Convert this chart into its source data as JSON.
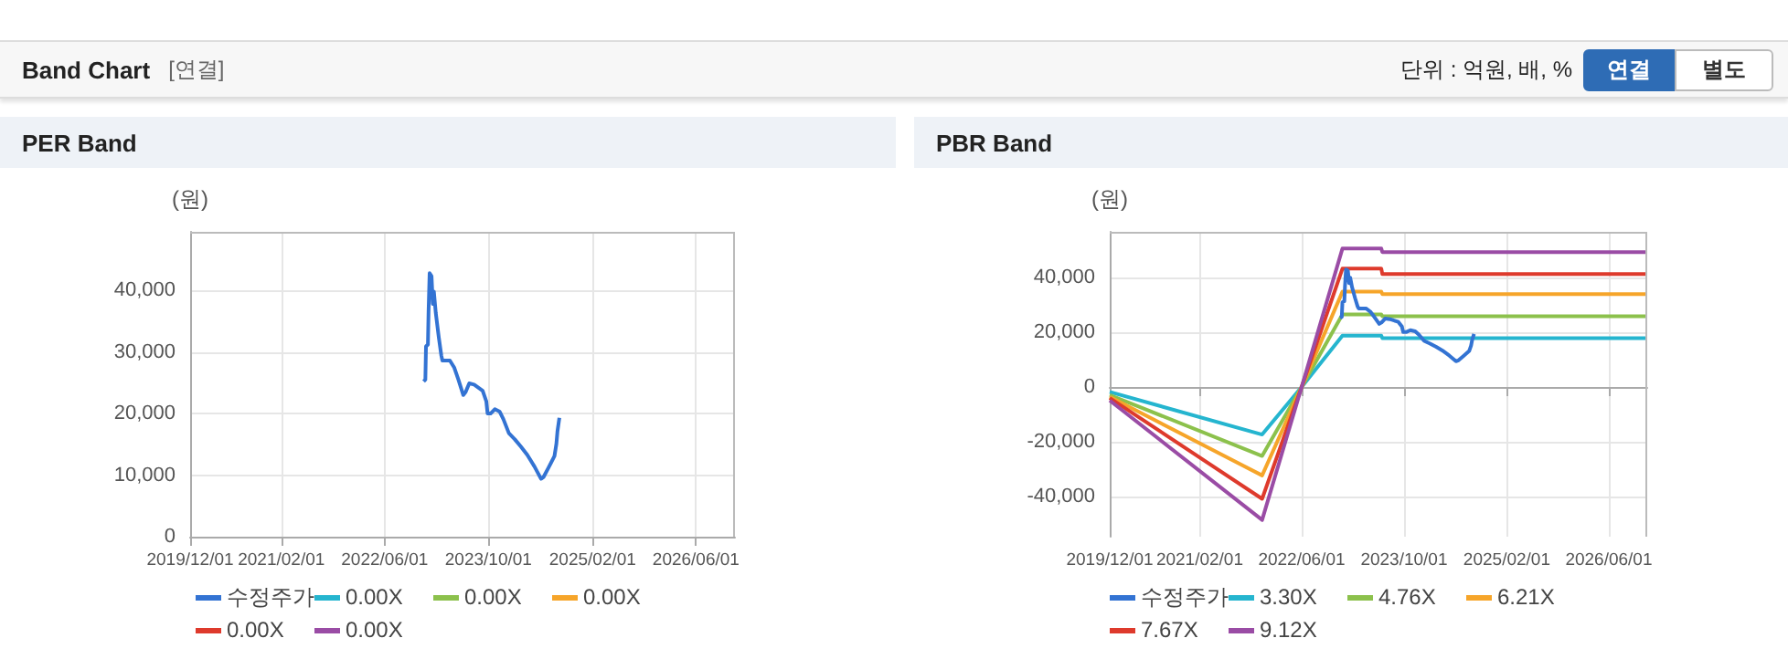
{
  "chart_data": [
    {
      "type": "other",
      "title": "Band Chart",
      "annotations": [
        "[연결]",
        "단위 : 억원, 배, %",
        "연결",
        "별도"
      ]
    },
    {
      "type": "line",
      "title": "PER Band",
      "ylabel": "(원)",
      "legend": "bottom",
      "grid": true,
      "xlim": [
        "2019-12-01",
        "2026-12-01"
      ],
      "ylim": [
        0,
        49500
      ],
      "xticks": [
        {
          "value": "2019-12-01",
          "label": "2019/12/01"
        },
        {
          "value": "2021-02-01",
          "label": "2021/02/01"
        },
        {
          "value": "2022-06-01",
          "label": "2022/06/01"
        },
        {
          "value": "2023-10-01",
          "label": "2023/10/01"
        },
        {
          "value": "2025-02-01",
          "label": "2025/02/01"
        },
        {
          "value": "2026-06-01",
          "label": "2026/06/01"
        }
      ],
      "yticks": [
        0,
        {
          "value": 10000,
          "label": "10,000"
        },
        {
          "value": 20000,
          "label": "20,000"
        },
        {
          "value": 30000,
          "label": "30,000"
        },
        {
          "value": 40000,
          "label": "40,000"
        }
      ],
      "series": [
        {
          "name": "수정주가",
          "color": "#3373d3",
          "x": [
            "2022-12-01",
            "2022-12-09",
            "2022-12-12",
            "2022-12-21",
            "2022-12-24",
            "2022-12-29",
            "2023-01-07",
            "2023-01-13",
            "2023-01-18",
            "2023-01-27",
            "2023-02-10",
            "2023-02-22",
            "2023-02-27",
            "2023-04-03",
            "2023-04-23",
            "2023-05-13",
            "2023-06-05",
            "2023-06-16",
            "2023-07-03",
            "2023-07-26",
            "2023-09-04",
            "2023-09-21",
            "2023-09-27",
            "2023-10-11",
            "2023-10-31",
            "2023-11-23",
            "2023-12-10",
            "2024-01-05",
            "2024-02-02",
            "2024-03-02",
            "2024-03-31",
            "2024-05-04",
            "2024-06-04",
            "2024-06-16",
            "2024-07-09",
            "2024-08-06",
            "2024-08-15",
            "2024-08-20",
            "2024-08-29"
          ],
          "values": [
            25200,
            25500,
            30900,
            31200,
            36500,
            42800,
            42300,
            37800,
            39800,
            36300,
            32400,
            29400,
            28600,
            28600,
            27500,
            25500,
            23000,
            23500,
            24900,
            24700,
            23700,
            22000,
            20000,
            20000,
            20700,
            20300,
            19100,
            16800,
            15800,
            14600,
            13300,
            11400,
            9400,
            9700,
            11200,
            13100,
            15100,
            17100,
            19300
          ]
        },
        {
          "name": "0.00X",
          "color": "#25b5cf"
        },
        {
          "name": "0.00X",
          "color": "#8cc14c"
        },
        {
          "name": "0.00X",
          "color": "#f6a52a"
        },
        {
          "name": "0.00X",
          "color": "#de3a2c"
        },
        {
          "name": "0.00X",
          "color": "#9a4ca5"
        }
      ]
    },
    {
      "type": "line",
      "title": "PBR Band",
      "ylabel": "(원)",
      "legend": "bottom",
      "grid": true,
      "xlim": [
        "2019-12-01",
        "2026-12-01"
      ],
      "ylim": [
        -54500,
        56500
      ],
      "xticks": [
        {
          "value": "2019-12-01",
          "label": "2019/12/01"
        },
        {
          "value": "2021-02-01",
          "label": "2021/02/01"
        },
        {
          "value": "2022-06-01",
          "label": "2022/06/01"
        },
        {
          "value": "2023-10-01",
          "label": "2023/10/01"
        },
        {
          "value": "2025-02-01",
          "label": "2025/02/01"
        },
        {
          "value": "2026-06-01",
          "label": "2026/06/01"
        }
      ],
      "yticks": [
        {
          "value": -40000,
          "label": "-40,000"
        },
        {
          "value": -20000,
          "label": "-20,000"
        },
        0,
        {
          "value": 20000,
          "label": "20,000"
        },
        {
          "value": 40000,
          "label": "40,000"
        }
      ],
      "x": [
        "2019-12-01",
        "2021-11-25",
        "2022-06-01",
        "2022-12-12",
        "2023-06-15",
        "2023-06-20",
        "2026-12-01"
      ],
      "series": [
        {
          "name": "수정주가",
          "color": "#3373d3",
          "x": [
            "2022-12-01",
            "2022-12-09",
            "2022-12-12",
            "2022-12-21",
            "2022-12-24",
            "2022-12-29",
            "2023-01-07",
            "2023-01-13",
            "2023-01-18",
            "2023-01-27",
            "2023-02-10",
            "2023-02-22",
            "2023-02-27",
            "2023-04-03",
            "2023-04-23",
            "2023-05-13",
            "2023-06-05",
            "2023-06-16",
            "2023-07-03",
            "2023-07-26",
            "2023-09-04",
            "2023-09-21",
            "2023-09-27",
            "2023-10-11",
            "2023-10-31",
            "2023-11-23",
            "2023-12-10",
            "2024-01-05",
            "2024-02-02",
            "2024-03-02",
            "2024-03-31",
            "2024-05-04",
            "2024-06-04",
            "2024-06-16",
            "2024-07-09",
            "2024-08-06",
            "2024-08-15",
            "2024-08-20",
            "2024-08-29"
          ],
          "values": [
            25200,
            25500,
            30900,
            31200,
            36500,
            42800,
            42300,
            37800,
            39800,
            36300,
            32400,
            29400,
            28600,
            28600,
            27500,
            25500,
            23000,
            23500,
            24900,
            24700,
            23700,
            22000,
            20000,
            20000,
            20700,
            20300,
            19100,
            16800,
            15800,
            14600,
            13300,
            11400,
            9400,
            9700,
            11200,
            13100,
            15100,
            17100,
            19300
          ]
        },
        {
          "name": "3.30X",
          "color": "#25b5cf",
          "values": [
            -1800,
            -17300,
            0,
            18700,
            18700,
            17800,
            17800
          ]
        },
        {
          "name": "4.76X",
          "color": "#8cc14c",
          "values": [
            -2900,
            -25100,
            0,
            26400,
            26400,
            25800,
            25800
          ]
        },
        {
          "name": "6.21X",
          "color": "#f6a52a",
          "values": [
            -3600,
            -32200,
            0,
            34700,
            34700,
            33800,
            33800
          ]
        },
        {
          "name": "7.67X",
          "color": "#de3a2c",
          "values": [
            -4000,
            -40700,
            0,
            43100,
            43100,
            41100,
            41100
          ]
        },
        {
          "name": "9.12X",
          "color": "#9a4ca5",
          "values": [
            -4900,
            -48400,
            0,
            50400,
            50400,
            49100,
            49100
          ]
        }
      ]
    }
  ]
}
